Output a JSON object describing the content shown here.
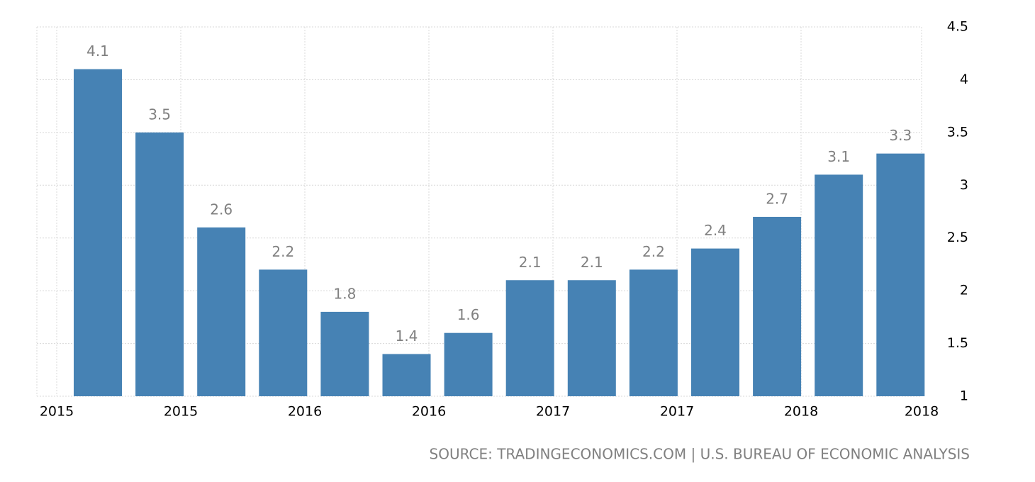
{
  "chart_data": {
    "type": "bar",
    "x_labels": [
      "2015",
      "2015",
      "2016",
      "2016",
      "2017",
      "2017",
      "2018",
      "2018"
    ],
    "values": [
      4.1,
      3.5,
      2.6,
      2.2,
      1.8,
      1.4,
      1.6,
      2.1,
      2.1,
      2.2,
      2.4,
      2.7,
      3.1,
      3.3
    ],
    "color": "#4682b4",
    "ylim": [
      1,
      4.5
    ],
    "yticks": [
      1,
      1.5,
      2,
      2.5,
      3,
      3.5,
      4,
      4.5
    ],
    "grid": true,
    "source": "SOURCE: TRADINGECONOMICS.COM | U.S. BUREAU OF ECONOMIC ANALYSIS"
  }
}
